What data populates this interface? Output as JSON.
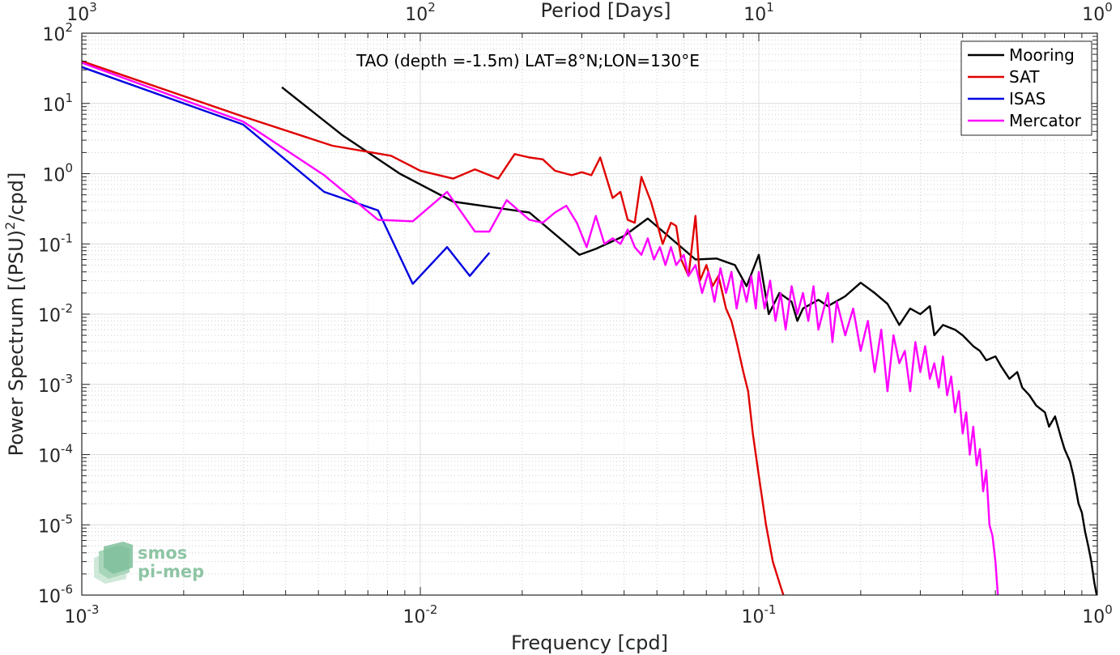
{
  "chart_data": {
    "type": "line",
    "title": "TAO (depth =-1.5m) LAT=8°N;LON=130°E",
    "xlabel": "Frequency [cpd]",
    "ylabel": "Power Spectrum [(PSU)²/cpd]",
    "ylabel_parts": {
      "base": "Power Spectrum [(PSU)",
      "sup": "2",
      "tail": "/cpd]"
    },
    "x2label": "Period [Days]",
    "xscale": "log",
    "yscale": "log",
    "xlim": [
      0.001,
      1
    ],
    "ylim": [
      1e-06,
      100
    ],
    "grid": true,
    "legend_position": "top-right",
    "x_ticks": [
      {
        "value": 0.001,
        "base": "10",
        "exp": "-3"
      },
      {
        "value": 0.01,
        "base": "10",
        "exp": "-2"
      },
      {
        "value": 0.1,
        "base": "10",
        "exp": "-1"
      },
      {
        "value": 1,
        "base": "10",
        "exp": "0"
      }
    ],
    "x2_ticks": [
      {
        "value": 1000,
        "base": "10",
        "exp": "3"
      },
      {
        "value": 100,
        "base": "10",
        "exp": "2"
      },
      {
        "value": 10,
        "base": "10",
        "exp": "1"
      },
      {
        "value": 1,
        "base": "10",
        "exp": "0"
      }
    ],
    "y_ticks": [
      {
        "value": 1e-06,
        "base": "10",
        "exp": "-6"
      },
      {
        "value": 1e-05,
        "base": "10",
        "exp": "-5"
      },
      {
        "value": 0.0001,
        "base": "10",
        "exp": "-4"
      },
      {
        "value": 0.001,
        "base": "10",
        "exp": "-3"
      },
      {
        "value": 0.01,
        "base": "10",
        "exp": "-2"
      },
      {
        "value": 0.1,
        "base": "10",
        "exp": "-1"
      },
      {
        "value": 1,
        "base": "10",
        "exp": "0"
      },
      {
        "value": 10,
        "base": "10",
        "exp": "1"
      },
      {
        "value": 100,
        "base": "10",
        "exp": "2"
      }
    ],
    "series": [
      {
        "name": "Mooring",
        "color": "#000000",
        "points": [
          [
            0.0039,
            17
          ],
          [
            0.0059,
            3.5
          ],
          [
            0.0087,
            1.0
          ],
          [
            0.0125,
            0.4
          ],
          [
            0.021,
            0.28
          ],
          [
            0.0295,
            0.07
          ],
          [
            0.033,
            0.085
          ],
          [
            0.04,
            0.13
          ],
          [
            0.047,
            0.23
          ],
          [
            0.055,
            0.12
          ],
          [
            0.065,
            0.06
          ],
          [
            0.075,
            0.062
          ],
          [
            0.085,
            0.05
          ],
          [
            0.092,
            0.025
          ],
          [
            0.1,
            0.07
          ],
          [
            0.107,
            0.01
          ],
          [
            0.115,
            0.02
          ],
          [
            0.125,
            0.015
          ],
          [
            0.13,
            0.008
          ],
          [
            0.135,
            0.012
          ],
          [
            0.15,
            0.016
          ],
          [
            0.16,
            0.013
          ],
          [
            0.18,
            0.018
          ],
          [
            0.2,
            0.028
          ],
          [
            0.22,
            0.02
          ],
          [
            0.24,
            0.014
          ],
          [
            0.26,
            0.007
          ],
          [
            0.28,
            0.012
          ],
          [
            0.3,
            0.01
          ],
          [
            0.32,
            0.013
          ],
          [
            0.33,
            0.005
          ],
          [
            0.35,
            0.007
          ],
          [
            0.38,
            0.006
          ],
          [
            0.4,
            0.005
          ],
          [
            0.43,
            0.0035
          ],
          [
            0.45,
            0.003
          ],
          [
            0.47,
            0.0022
          ],
          [
            0.5,
            0.0025
          ],
          [
            0.52,
            0.0018
          ],
          [
            0.55,
            0.0012
          ],
          [
            0.58,
            0.0015
          ],
          [
            0.6,
            0.0009
          ],
          [
            0.63,
            0.0007
          ],
          [
            0.66,
            0.0005
          ],
          [
            0.7,
            0.0004
          ],
          [
            0.72,
            0.00025
          ],
          [
            0.75,
            0.00035
          ],
          [
            0.78,
            0.00018
          ],
          [
            0.8,
            0.00012
          ],
          [
            0.83,
            8e-05
          ],
          [
            0.85,
            5e-05
          ],
          [
            0.88,
            2e-05
          ],
          [
            0.9,
            1.5e-05
          ],
          [
            0.92,
            8e-06
          ],
          [
            0.94,
            5e-06
          ],
          [
            0.96,
            3e-06
          ],
          [
            0.98,
            1.5e-06
          ],
          [
            1.0,
            9e-07
          ]
        ]
      },
      {
        "name": "SAT",
        "color": "#e00000",
        "points": [
          [
            0.001,
            40
          ],
          [
            0.003,
            6.5
          ],
          [
            0.0055,
            2.5
          ],
          [
            0.0082,
            1.8
          ],
          [
            0.01,
            1.1
          ],
          [
            0.0125,
            0.85
          ],
          [
            0.0145,
            1.15
          ],
          [
            0.017,
            0.85
          ],
          [
            0.019,
            1.9
          ],
          [
            0.021,
            1.7
          ],
          [
            0.023,
            1.6
          ],
          [
            0.025,
            1.1
          ],
          [
            0.028,
            0.95
          ],
          [
            0.03,
            1.05
          ],
          [
            0.032,
            0.95
          ],
          [
            0.034,
            1.7
          ],
          [
            0.037,
            0.45
          ],
          [
            0.039,
            0.55
          ],
          [
            0.041,
            0.22
          ],
          [
            0.043,
            0.2
          ],
          [
            0.045,
            0.9
          ],
          [
            0.048,
            0.4
          ],
          [
            0.05,
            0.2
          ],
          [
            0.052,
            0.1
          ],
          [
            0.055,
            0.2
          ],
          [
            0.057,
            0.18
          ],
          [
            0.059,
            0.06
          ],
          [
            0.062,
            0.035
          ],
          [
            0.065,
            0.25
          ],
          [
            0.067,
            0.03
          ],
          [
            0.07,
            0.05
          ],
          [
            0.073,
            0.025
          ],
          [
            0.076,
            0.035
          ],
          [
            0.08,
            0.012
          ],
          [
            0.083,
            0.008
          ],
          [
            0.086,
            0.004
          ],
          [
            0.09,
            0.0015
          ],
          [
            0.093,
            0.0008
          ],
          [
            0.096,
            0.0002
          ],
          [
            0.1,
            5e-05
          ],
          [
            0.105,
            1e-05
          ],
          [
            0.11,
            3e-06
          ],
          [
            0.115,
            1.5e-06
          ],
          [
            0.12,
            8e-07
          ]
        ]
      },
      {
        "name": "ISAS",
        "color": "#0000e0",
        "points": [
          [
            0.001,
            33
          ],
          [
            0.003,
            5
          ],
          [
            0.0052,
            0.55
          ],
          [
            0.0075,
            0.3
          ],
          [
            0.0095,
            0.027
          ],
          [
            0.012,
            0.09
          ],
          [
            0.014,
            0.035
          ],
          [
            0.016,
            0.075
          ]
        ]
      },
      {
        "name": "Mercator",
        "color": "#ff00ff",
        "points": [
          [
            0.001,
            38
          ],
          [
            0.003,
            5.5
          ],
          [
            0.0052,
            0.95
          ],
          [
            0.0075,
            0.22
          ],
          [
            0.0095,
            0.21
          ],
          [
            0.012,
            0.55
          ],
          [
            0.0145,
            0.15
          ],
          [
            0.016,
            0.15
          ],
          [
            0.018,
            0.42
          ],
          [
            0.021,
            0.22
          ],
          [
            0.023,
            0.2
          ],
          [
            0.025,
            0.28
          ],
          [
            0.027,
            0.35
          ],
          [
            0.029,
            0.2
          ],
          [
            0.031,
            0.09
          ],
          [
            0.033,
            0.25
          ],
          [
            0.035,
            0.1
          ],
          [
            0.037,
            0.12
          ],
          [
            0.039,
            0.1
          ],
          [
            0.041,
            0.16
          ],
          [
            0.043,
            0.09
          ],
          [
            0.045,
            0.07
          ],
          [
            0.047,
            0.12
          ],
          [
            0.049,
            0.06
          ],
          [
            0.051,
            0.09
          ],
          [
            0.053,
            0.05
          ],
          [
            0.055,
            0.09
          ],
          [
            0.057,
            0.05
          ],
          [
            0.06,
            0.07
          ],
          [
            0.062,
            0.035
          ],
          [
            0.065,
            0.05
          ],
          [
            0.068,
            0.02
          ],
          [
            0.071,
            0.04
          ],
          [
            0.074,
            0.015
          ],
          [
            0.077,
            0.045
          ],
          [
            0.08,
            0.02
          ],
          [
            0.083,
            0.04
          ],
          [
            0.086,
            0.012
          ],
          [
            0.089,
            0.03
          ],
          [
            0.092,
            0.015
          ],
          [
            0.095,
            0.035
          ],
          [
            0.098,
            0.012
          ],
          [
            0.1,
            0.04
          ],
          [
            0.104,
            0.012
          ],
          [
            0.108,
            0.03
          ],
          [
            0.112,
            0.008
          ],
          [
            0.116,
            0.02
          ],
          [
            0.12,
            0.006
          ],
          [
            0.125,
            0.025
          ],
          [
            0.13,
            0.01
          ],
          [
            0.135,
            0.02
          ],
          [
            0.14,
            0.008
          ],
          [
            0.145,
            0.025
          ],
          [
            0.15,
            0.006
          ],
          [
            0.16,
            0.02
          ],
          [
            0.165,
            0.004
          ],
          [
            0.17,
            0.015
          ],
          [
            0.18,
            0.005
          ],
          [
            0.19,
            0.012
          ],
          [
            0.2,
            0.003
          ],
          [
            0.21,
            0.008
          ],
          [
            0.22,
            0.0015
          ],
          [
            0.23,
            0.006
          ],
          [
            0.24,
            0.0008
          ],
          [
            0.25,
            0.005
          ],
          [
            0.26,
            0.002
          ],
          [
            0.27,
            0.003
          ],
          [
            0.28,
            0.0008
          ],
          [
            0.29,
            0.004
          ],
          [
            0.3,
            0.0015
          ],
          [
            0.31,
            0.0035
          ],
          [
            0.32,
            0.0012
          ],
          [
            0.33,
            0.002
          ],
          [
            0.34,
            0.0009
          ],
          [
            0.35,
            0.0025
          ],
          [
            0.36,
            0.0007
          ],
          [
            0.37,
            0.0013
          ],
          [
            0.38,
            0.0004
          ],
          [
            0.39,
            0.0008
          ],
          [
            0.4,
            0.0002
          ],
          [
            0.41,
            0.0004
          ],
          [
            0.42,
            0.0001
          ],
          [
            0.43,
            0.00025
          ],
          [
            0.44,
            7e-05
          ],
          [
            0.45,
            0.00012
          ],
          [
            0.46,
            3e-05
          ],
          [
            0.47,
            6e-05
          ],
          [
            0.48,
            1e-05
          ],
          [
            0.49,
            7e-06
          ],
          [
            0.5,
            3e-06
          ],
          [
            0.51,
            8e-07
          ]
        ]
      }
    ]
  },
  "logo": {
    "line1": "smos",
    "line2": "pi-mep",
    "color": "#8ec5a4"
  }
}
